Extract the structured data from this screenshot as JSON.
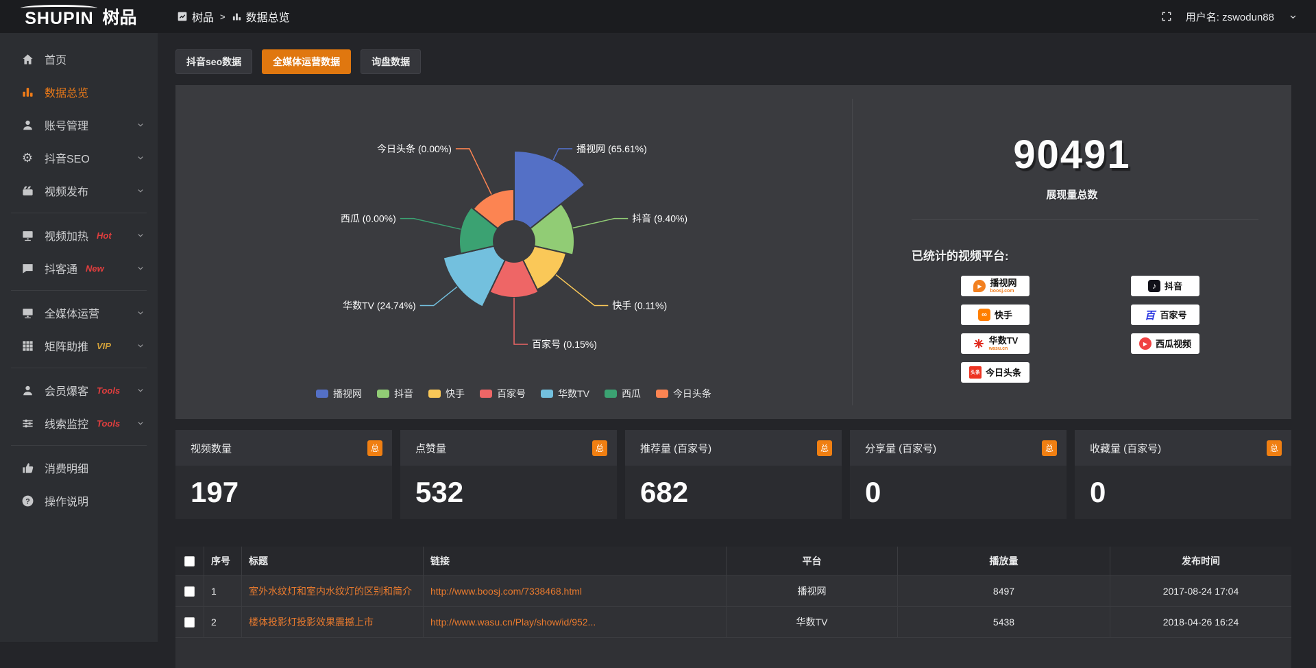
{
  "topbar": {
    "logo_en": "SHUPIN",
    "logo_cn": "树品",
    "breadcrumb": [
      "树品",
      "数据总览"
    ],
    "breadcrumb_sep": ">",
    "username": "用户名: zswodun88"
  },
  "sidebar": {
    "items": [
      {
        "key": "home",
        "icon": "home",
        "label": "首页"
      },
      {
        "key": "data-overview",
        "icon": "bars",
        "label": "数据总览",
        "active": true
      },
      {
        "key": "account-management",
        "icon": "user",
        "label": "账号管理",
        "chevron": true
      },
      {
        "key": "douyin-seo",
        "icon": "gear",
        "label": "抖音SEO",
        "chevron": true
      },
      {
        "key": "video-publish",
        "icon": "video",
        "label": "视频发布",
        "chevron": true,
        "divider_after": true
      },
      {
        "key": "video-heating",
        "icon": "player",
        "label": "视频加热",
        "badge": "Hot",
        "badge_color": "#e03e3e",
        "chevron": true
      },
      {
        "key": "doukertong",
        "icon": "chat",
        "label": "抖客通",
        "badge": "New",
        "badge_color": "#e03e3e",
        "chevron": true,
        "divider_after": true
      },
      {
        "key": "all-media-operation",
        "icon": "monitor",
        "label": "全媒体运营",
        "chevron": true
      },
      {
        "key": "matrix-boost",
        "icon": "grid",
        "label": "矩阵助推",
        "badge": "VIP",
        "badge_color": "#d2a13a",
        "chevron": true,
        "divider_after": true
      },
      {
        "key": "member-baoke",
        "icon": "user",
        "label": "会员爆客",
        "badge": "Tools",
        "badge_color": "#e03e3e",
        "chevron": true
      },
      {
        "key": "clue-monitor",
        "icon": "sliders",
        "label": "线索监控",
        "badge": "Tools",
        "badge_color": "#e03e3e",
        "chevron": true,
        "divider_after": true
      },
      {
        "key": "consumption-detail",
        "icon": "thumb",
        "label": "消费明细"
      },
      {
        "key": "operation-guide",
        "icon": "question",
        "label": "操作说明"
      }
    ]
  },
  "tabs": [
    {
      "key": "douyin-seo-data",
      "label": "抖音seo数据"
    },
    {
      "key": "all-media-data",
      "label": "全媒体运营数据",
      "active": true
    },
    {
      "key": "inquiry-data",
      "label": "询盘数据"
    }
  ],
  "chart_data": {
    "type": "pie",
    "subtype": "nightingale-rose",
    "labels": [
      "播视网",
      "抖音",
      "快手",
      "百家号",
      "华数TV",
      "西瓜",
      "今日头条"
    ],
    "values_pct": [
      65.61,
      9.4,
      0.11,
      0.15,
      24.74,
      0.0,
      0.0
    ],
    "colors": [
      "#5470c6",
      "#91cc75",
      "#fac858",
      "#ee6666",
      "#73c0de",
      "#3ba272",
      "#fc8452"
    ],
    "legend_position": "bottom",
    "label_format": "{name} ({pct}%)",
    "inner_radius": 30,
    "radius_hints": [
      132,
      88,
      78,
      82,
      106,
      80,
      76
    ]
  },
  "summary": {
    "total_value": "90491",
    "total_label": "展现量总数",
    "platforms_title": "已统计的视频平台:",
    "platform_columns": [
      [
        {
          "key": "boosj",
          "name": "播视网",
          "sub": "boosj.com"
        },
        {
          "key": "kuaishou",
          "name": "快手"
        },
        {
          "key": "wasu",
          "name": "华数TV",
          "sub": "wasu.cn"
        },
        {
          "key": "toutiao",
          "name": "今日头条"
        }
      ],
      [
        {
          "key": "douyin",
          "name": "抖音"
        },
        {
          "key": "baijiahao",
          "name": "百家号"
        },
        {
          "key": "xigua",
          "name": "西瓜视频"
        }
      ]
    ]
  },
  "stat_cards": [
    {
      "key": "video-count",
      "label": "视频数量",
      "value": "197",
      "badge": "总"
    },
    {
      "key": "like-count",
      "label": "点赞量",
      "value": "532",
      "badge": "总"
    },
    {
      "key": "recommend-count",
      "label": "推荐量 (百家号)",
      "value": "682",
      "badge": "总"
    },
    {
      "key": "share-count",
      "label": "分享量 (百家号)",
      "value": "0",
      "badge": "总"
    },
    {
      "key": "favorite-count",
      "label": "收藏量 (百家号)",
      "value": "0",
      "badge": "总"
    }
  ],
  "table": {
    "headers": [
      "",
      "序号",
      "标题",
      "链接",
      "平台",
      "播放量",
      "发布时间"
    ],
    "rows": [
      {
        "no": "1",
        "title": "室外水纹灯和室内水纹灯的区别和简介",
        "link": "http://www.boosj.com/7338468.html",
        "platform": "播视网",
        "plays": "8497",
        "time": "2017-08-24 17:04"
      },
      {
        "no": "2",
        "title": "楼体投影灯投影效果震撼上市",
        "link": "http://www.wasu.cn/Play/show/id/952...",
        "platform": "华数TV",
        "plays": "5438",
        "time": "2018-04-26 16:24"
      }
    ],
    "has_partial_row": true
  }
}
